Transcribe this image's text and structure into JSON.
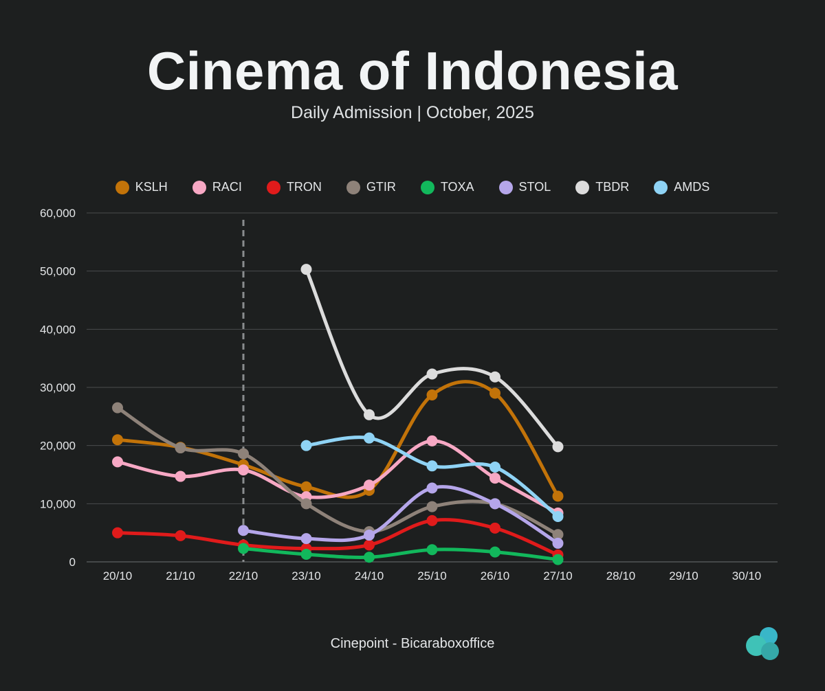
{
  "header": {
    "title": "Cinema of Indonesia",
    "subtitle": "Daily Admission | October, 2025"
  },
  "footer": {
    "source": "Cinepoint - Bicaraboxoffice"
  },
  "colors": {
    "background": "#1d1f1f",
    "grid": "#4a4d4e",
    "marker_line": "#8a8d8f"
  },
  "chart_data": {
    "type": "line",
    "title": "Cinema of Indonesia",
    "subtitle": "Daily Admission | October, 2025",
    "xlabel": "",
    "ylabel": "",
    "categories": [
      "20/10",
      "21/10",
      "22/10",
      "23/10",
      "24/10",
      "25/10",
      "26/10",
      "27/10",
      "28/10",
      "29/10",
      "30/10"
    ],
    "ylim": [
      0,
      60000
    ],
    "yticks": [
      0,
      10000,
      20000,
      30000,
      40000,
      50000,
      60000
    ],
    "ytick_labels": [
      "0",
      "10,000",
      "20,000",
      "30,000",
      "40,000",
      "50,000",
      "60,000"
    ],
    "grid": "horizontal",
    "legend_position": "top-center",
    "vertical_marker_category": "22/10",
    "series": [
      {
        "name": "KSLH",
        "color": "#c27309",
        "values": [
          21000,
          19700,
          16700,
          12900,
          12300,
          28700,
          29000,
          11300,
          null,
          null,
          null
        ]
      },
      {
        "name": "RACI",
        "color": "#f7a8c4",
        "values": [
          17200,
          14700,
          15800,
          11200,
          13200,
          20800,
          14400,
          8400,
          null,
          null,
          null
        ]
      },
      {
        "name": "TRON",
        "color": "#e01b1b",
        "values": [
          5000,
          4500,
          2900,
          2300,
          2900,
          7100,
          5800,
          1200,
          null,
          null,
          null
        ]
      },
      {
        "name": "GTIR",
        "color": "#8e8279",
        "values": [
          26500,
          19600,
          18600,
          10000,
          5200,
          9500,
          10000,
          4700,
          null,
          null,
          null
        ]
      },
      {
        "name": "TOXA",
        "color": "#12b85c",
        "values": [
          null,
          null,
          2300,
          1300,
          800,
          2100,
          1700,
          400,
          null,
          null,
          null
        ]
      },
      {
        "name": "STOL",
        "color": "#b5a6ea",
        "values": [
          null,
          null,
          5400,
          4000,
          4600,
          12700,
          10000,
          3200,
          null,
          null,
          null
        ]
      },
      {
        "name": "TBDR",
        "color": "#dcdcdc",
        "values": [
          null,
          null,
          null,
          50300,
          25300,
          32300,
          31800,
          19800,
          null,
          null,
          null
        ]
      },
      {
        "name": "AMDS",
        "color": "#8fd3f5",
        "values": [
          null,
          null,
          null,
          20000,
          21300,
          16500,
          16300,
          7800,
          null,
          null,
          null
        ]
      }
    ]
  }
}
